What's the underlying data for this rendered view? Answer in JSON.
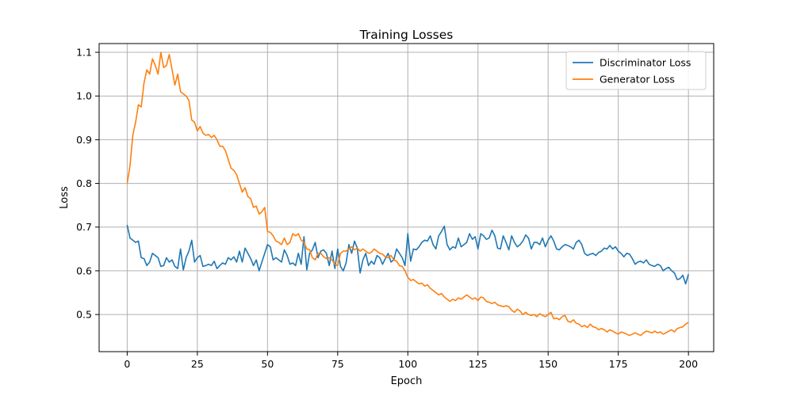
{
  "chart_data": {
    "type": "line",
    "title": "Training Losses",
    "xlabel": "Epoch",
    "ylabel": "Loss",
    "xlim": [
      -10,
      209
    ],
    "ylim": [
      0.415,
      1.12
    ],
    "xticks": [
      0,
      25,
      50,
      75,
      100,
      125,
      150,
      175,
      200
    ],
    "xtick_labels": [
      "0",
      "25",
      "50",
      "75",
      "100",
      "125",
      "150",
      "175",
      "200"
    ],
    "yticks": [
      0.5,
      0.6,
      0.7,
      0.8,
      0.9,
      1.0,
      1.1
    ],
    "ytick_labels": [
      "0.5",
      "0.6",
      "0.7",
      "0.8",
      "0.9",
      "1.0",
      "1.1"
    ],
    "grid": true,
    "legend": "top-right",
    "x_start": 0,
    "x_step": 1,
    "series": [
      {
        "name": "Discriminator Loss",
        "color": "#1f77b4",
        "values": [
          0.705,
          0.675,
          0.67,
          0.665,
          0.668,
          0.63,
          0.628,
          0.612,
          0.62,
          0.64,
          0.635,
          0.63,
          0.61,
          0.612,
          0.63,
          0.62,
          0.625,
          0.61,
          0.605,
          0.65,
          0.602,
          0.63,
          0.645,
          0.67,
          0.62,
          0.63,
          0.635,
          0.61,
          0.612,
          0.615,
          0.612,
          0.622,
          0.605,
          0.612,
          0.618,
          0.615,
          0.63,
          0.625,
          0.632,
          0.62,
          0.645,
          0.62,
          0.652,
          0.64,
          0.628,
          0.612,
          0.625,
          0.6,
          0.62,
          0.64,
          0.66,
          0.655,
          0.625,
          0.63,
          0.625,
          0.62,
          0.648,
          0.635,
          0.615,
          0.618,
          0.612,
          0.64,
          0.615,
          0.678,
          0.602,
          0.64,
          0.648,
          0.665,
          0.63,
          0.645,
          0.648,
          0.64,
          0.612,
          0.645,
          0.605,
          0.65,
          0.61,
          0.6,
          0.618,
          0.66,
          0.64,
          0.668,
          0.652,
          0.595,
          0.625,
          0.64,
          0.612,
          0.622,
          0.615,
          0.635,
          0.63,
          0.615,
          0.628,
          0.64,
          0.62,
          0.625,
          0.65,
          0.64,
          0.63,
          0.612,
          0.685,
          0.622,
          0.65,
          0.648,
          0.655,
          0.665,
          0.67,
          0.668,
          0.68,
          0.66,
          0.65,
          0.68,
          0.69,
          0.702,
          0.66,
          0.648,
          0.655,
          0.652,
          0.675,
          0.655,
          0.66,
          0.665,
          0.685,
          0.672,
          0.678,
          0.65,
          0.685,
          0.68,
          0.672,
          0.675,
          0.693,
          0.68,
          0.652,
          0.65,
          0.68,
          0.665,
          0.648,
          0.68,
          0.665,
          0.655,
          0.66,
          0.668,
          0.682,
          0.675,
          0.65,
          0.665,
          0.665,
          0.66,
          0.675,
          0.655,
          0.67,
          0.68,
          0.668,
          0.65,
          0.648,
          0.655,
          0.66,
          0.658,
          0.655,
          0.65,
          0.665,
          0.67,
          0.66,
          0.64,
          0.635,
          0.638,
          0.64,
          0.635,
          0.642,
          0.645,
          0.652,
          0.65,
          0.658,
          0.65,
          0.655,
          0.645,
          0.64,
          0.632,
          0.64,
          0.638,
          0.628,
          0.615,
          0.62,
          0.622,
          0.618,
          0.625,
          0.615,
          0.612,
          0.61,
          0.615,
          0.612,
          0.6,
          0.605,
          0.608,
          0.6,
          0.595,
          0.58,
          0.582,
          0.59,
          0.57,
          0.592
        ]
      },
      {
        "name": "Generator Loss",
        "color": "#ff7f0e",
        "values": [
          0.8,
          0.84,
          0.91,
          0.94,
          0.98,
          0.975,
          1.03,
          1.06,
          1.05,
          1.085,
          1.07,
          1.05,
          1.1,
          1.065,
          1.07,
          1.095,
          1.06,
          1.025,
          1.05,
          1.01,
          1.005,
          1.0,
          0.99,
          0.945,
          0.94,
          0.92,
          0.93,
          0.915,
          0.91,
          0.912,
          0.905,
          0.91,
          0.9,
          0.885,
          0.885,
          0.875,
          0.855,
          0.835,
          0.83,
          0.82,
          0.8,
          0.78,
          0.79,
          0.77,
          0.765,
          0.745,
          0.748,
          0.73,
          0.735,
          0.745,
          0.69,
          0.688,
          0.68,
          0.668,
          0.665,
          0.66,
          0.675,
          0.66,
          0.665,
          0.685,
          0.68,
          0.685,
          0.67,
          0.665,
          0.65,
          0.648,
          0.63,
          0.625,
          0.64,
          0.64,
          0.632,
          0.628,
          0.63,
          0.625,
          0.615,
          0.612,
          0.64,
          0.645,
          0.645,
          0.65,
          0.655,
          0.648,
          0.652,
          0.645,
          0.65,
          0.645,
          0.64,
          0.642,
          0.65,
          0.645,
          0.64,
          0.638,
          0.632,
          0.63,
          0.635,
          0.625,
          0.622,
          0.612,
          0.61,
          0.6,
          0.585,
          0.578,
          0.58,
          0.575,
          0.57,
          0.572,
          0.565,
          0.568,
          0.56,
          0.555,
          0.55,
          0.545,
          0.548,
          0.54,
          0.535,
          0.53,
          0.535,
          0.532,
          0.538,
          0.535,
          0.54,
          0.545,
          0.54,
          0.535,
          0.538,
          0.532,
          0.54,
          0.538,
          0.53,
          0.528,
          0.525,
          0.528,
          0.522,
          0.52,
          0.518,
          0.52,
          0.518,
          0.51,
          0.505,
          0.512,
          0.508,
          0.5,
          0.505,
          0.5,
          0.498,
          0.5,
          0.495,
          0.502,
          0.498,
          0.495,
          0.5,
          0.505,
          0.49,
          0.492,
          0.488,
          0.495,
          0.498,
          0.485,
          0.482,
          0.488,
          0.48,
          0.478,
          0.472,
          0.475,
          0.47,
          0.478,
          0.472,
          0.47,
          0.465,
          0.468,
          0.465,
          0.46,
          0.465,
          0.462,
          0.458,
          0.455,
          0.46,
          0.458,
          0.455,
          0.452,
          0.455,
          0.458,
          0.455,
          0.452,
          0.458,
          0.462,
          0.46,
          0.458,
          0.462,
          0.458,
          0.46,
          0.455,
          0.458,
          0.462,
          0.465,
          0.46,
          0.468,
          0.47,
          0.472,
          0.478,
          0.482
        ]
      }
    ]
  }
}
